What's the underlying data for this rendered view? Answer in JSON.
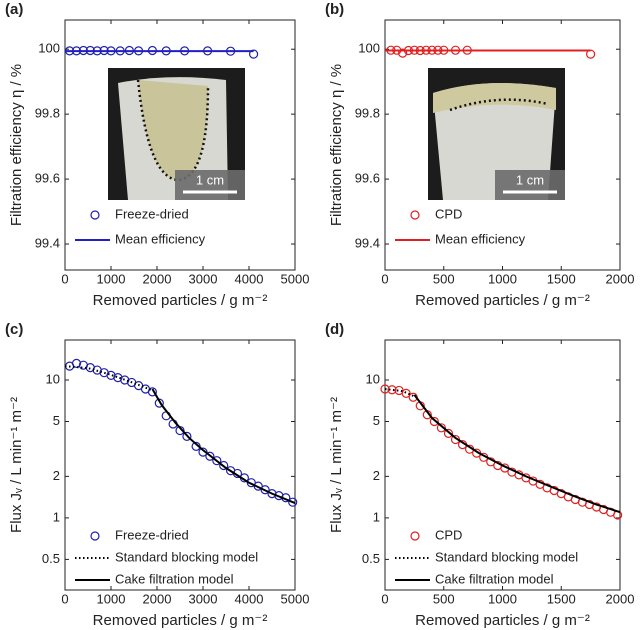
{
  "chart_data": [
    {
      "type": "scatter",
      "panel": "(a)",
      "xlabel": "Removed particles / g m⁻²",
      "ylabel": "Filtration efficiency η / %",
      "xlim": [
        0,
        5000
      ],
      "xticks": [
        0,
        1000,
        2000,
        3000,
        4000,
        5000
      ],
      "ylim": [
        99.32,
        100.09
      ],
      "yticks": [
        99.4,
        99.6,
        99.8,
        100
      ],
      "yscale": "linear",
      "legend": "lower left",
      "inset_scale": "1 cm",
      "series": [
        {
          "name": "Freeze-dried",
          "color": "#1f1fa8",
          "style": "circle",
          "x": [
            100,
            250,
            400,
            550,
            700,
            850,
            1000,
            1200,
            1400,
            1600,
            1900,
            2200,
            2600,
            3100,
            3600,
            4100
          ],
          "values": [
            99.995,
            99.995,
            99.996,
            99.996,
            99.995,
            99.996,
            99.995,
            99.995,
            99.996,
            99.995,
            99.996,
            99.995,
            99.995,
            99.995,
            99.994,
            99.985
          ]
        },
        {
          "name": "Mean efficiency",
          "color": "#1f1fc8",
          "style": "solid",
          "x": [
            0,
            4100
          ],
          "values": [
            99.994,
            99.994
          ]
        }
      ]
    },
    {
      "type": "scatter",
      "panel": "(b)",
      "xlabel": "Removed particles / g m⁻²",
      "ylabel": "Filtration efficiency η / %",
      "xlim": [
        0,
        2000
      ],
      "xticks": [
        0,
        500,
        1000,
        1500,
        2000
      ],
      "ylim": [
        99.32,
        100.09
      ],
      "yticks": [
        99.4,
        99.6,
        99.8,
        100
      ],
      "yscale": "linear",
      "legend": "lower left",
      "inset_scale": "1 cm",
      "series": [
        {
          "name": "CPD",
          "color": "#e02020",
          "style": "circle",
          "x": [
            50,
            100,
            150,
            200,
            250,
            300,
            350,
            400,
            450,
            500,
            600,
            700,
            1750
          ],
          "values": [
            99.997,
            99.997,
            99.988,
            99.996,
            99.997,
            99.996,
            99.997,
            99.997,
            99.997,
            99.997,
            99.997,
            99.997,
            99.985
          ]
        },
        {
          "name": "Mean efficiency",
          "color": "#e02020",
          "style": "solid",
          "x": [
            0,
            1750
          ],
          "values": [
            99.996,
            99.996
          ]
        }
      ]
    },
    {
      "type": "scatter",
      "panel": "(c)",
      "xlabel": "Removed particles / g m⁻²",
      "ylabel": "Flux Jᵥ / L min⁻¹ m⁻²",
      "xlim": [
        0,
        5000
      ],
      "xticks": [
        0,
        1000,
        2000,
        3000,
        4000,
        5000
      ],
      "ylim": [
        0.3,
        19.5
      ],
      "yticks": [
        0.5,
        1,
        2,
        5,
        10
      ],
      "yscale": "log",
      "legend": "lower left",
      "series": [
        {
          "name": "Freeze-dried",
          "color": "#1f1fa8",
          "style": "circle",
          "x": [
            100,
            250,
            400,
            550,
            700,
            850,
            1000,
            1150,
            1300,
            1450,
            1600,
            1750,
            1900,
            2050,
            2200,
            2350,
            2500,
            2650,
            2850,
            3000,
            3150,
            3300,
            3450,
            3600,
            3750,
            3900,
            4050,
            4200,
            4350,
            4500,
            4650,
            4800,
            4950
          ],
          "values": [
            12.6,
            13.2,
            12.8,
            12.3,
            11.8,
            11.3,
            10.8,
            10.4,
            10.0,
            9.6,
            9.1,
            8.6,
            8.2,
            6.8,
            5.5,
            4.8,
            4.3,
            3.9,
            3.3,
            3.0,
            2.8,
            2.6,
            2.4,
            2.2,
            2.1,
            1.95,
            1.8,
            1.7,
            1.6,
            1.5,
            1.45,
            1.4,
            1.3
          ]
        },
        {
          "name": "Standard blocking model",
          "color": "#000000",
          "style": "dotted",
          "x": [
            0,
            500,
            1000,
            1500,
            1900
          ],
          "values": [
            12.6,
            12.2,
            10.9,
            9.5,
            8.4
          ]
        },
        {
          "name": "Cake filtration model",
          "color": "#000000",
          "style": "solid",
          "x": [
            1900,
            2100,
            2400,
            2700,
            3000,
            3500,
            4000,
            4500,
            5000
          ],
          "values": [
            8.6,
            6.6,
            4.9,
            3.8,
            3.1,
            2.3,
            1.8,
            1.5,
            1.28
          ]
        }
      ]
    },
    {
      "type": "scatter",
      "panel": "(d)",
      "xlabel": "Removed particles / g m⁻²",
      "ylabel": "Flux Jᵥ / L min⁻¹ m⁻²",
      "xlim": [
        0,
        2000
      ],
      "xticks": [
        0,
        500,
        1000,
        1500,
        2000
      ],
      "ylim": [
        0.3,
        19.5
      ],
      "yticks": [
        0.5,
        1,
        2,
        5,
        10
      ],
      "yscale": "log",
      "legend": "lower left",
      "series": [
        {
          "name": "CPD",
          "color": "#e02020",
          "style": "circle",
          "x": [
            0,
            60,
            120,
            180,
            240,
            300,
            360,
            420,
            480,
            540,
            600,
            660,
            720,
            780,
            840,
            900,
            960,
            1020,
            1080,
            1140,
            1200,
            1260,
            1320,
            1380,
            1440,
            1500,
            1560,
            1620,
            1680,
            1740,
            1800,
            1860,
            1920,
            1980
          ],
          "values": [
            8.6,
            8.5,
            8.4,
            8.0,
            7.5,
            6.5,
            5.6,
            5.0,
            4.5,
            4.1,
            3.7,
            3.4,
            3.15,
            2.95,
            2.75,
            2.55,
            2.4,
            2.3,
            2.15,
            2.05,
            1.95,
            1.85,
            1.75,
            1.65,
            1.58,
            1.5,
            1.42,
            1.36,
            1.3,
            1.25,
            1.2,
            1.15,
            1.1,
            1.05
          ]
        },
        {
          "name": "Standard blocking model",
          "color": "#000000",
          "style": "dotted",
          "x": [
            0,
            150,
            250
          ],
          "values": [
            8.6,
            8.3,
            7.6
          ]
        },
        {
          "name": "Cake filtration model",
          "color": "#000000",
          "style": "solid",
          "x": [
            250,
            400,
            600,
            800,
            1000,
            1200,
            1400,
            1600,
            1800,
            2000
          ],
          "values": [
            7.8,
            5.3,
            3.8,
            2.95,
            2.4,
            2.0,
            1.7,
            1.45,
            1.25,
            1.1
          ]
        }
      ]
    }
  ]
}
